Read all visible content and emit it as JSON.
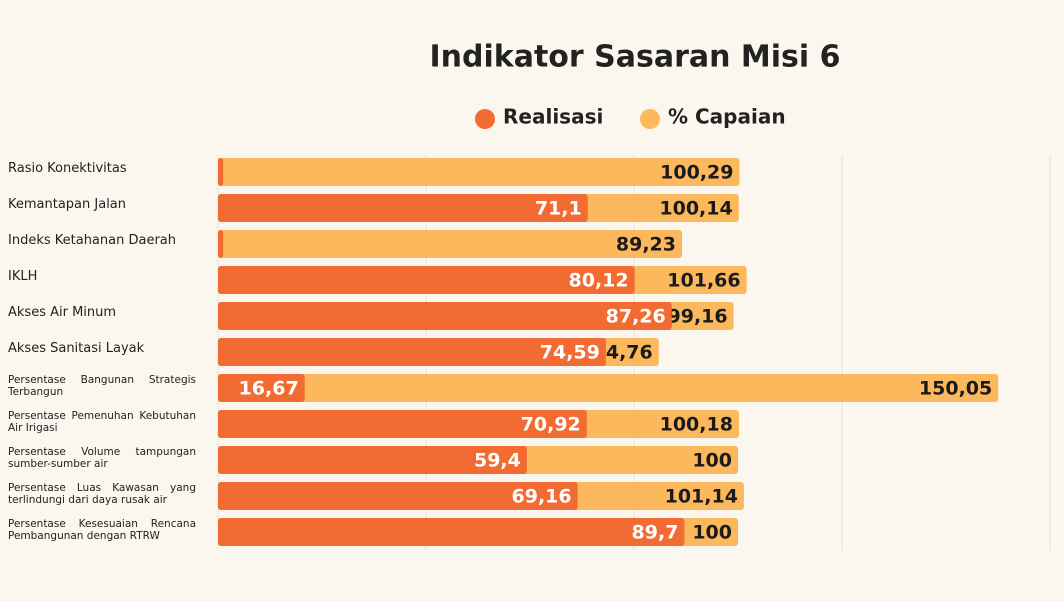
{
  "chart_data": {
    "type": "bar",
    "orientation": "horizontal",
    "title": "Indikator Sasaran Misi 6",
    "categories": [
      "Rasio Konektivitas",
      "Kemantapan Jalan",
      "Indeks Ketahanan Daerah",
      "IKLH",
      "Akses Air Minum",
      "Akses Sanitasi Layak",
      "Persentase Bangunan Strategis Terbangun",
      "Persentase Pemenuhan Kebutuhan Air Irigasi",
      "Persentase Volume tampungan sumber-sumber air",
      "Persentase Luas Kawasan yang terlindungi dari daya rusak air",
      "Persentase Kesesuaian Rencana Pembangunan dengan RTRW"
    ],
    "series": [
      {
        "name": "Realisasi",
        "color": "#f26b32",
        "values": [
          1,
          71.1,
          1,
          80.12,
          87.26,
          74.59,
          16.67,
          70.92,
          59.4,
          69.16,
          89.7
        ],
        "value_labels": [
          null,
          "71,1",
          null,
          "80,12",
          "87,26",
          "74,59",
          "16,67",
          "70,92",
          "59,4",
          "69,16",
          "89,7"
        ]
      },
      {
        "name": "% Capaian",
        "color": "#fbb85c",
        "values": [
          100.29,
          100.14,
          89.23,
          101.66,
          99.16,
          84.76,
          150.05,
          100.18,
          100,
          101.14,
          100
        ],
        "value_labels": [
          "100,29",
          "100,14",
          "89,23",
          "101,66",
          "99,16",
          "84,76",
          "150,05",
          "100,18",
          "100",
          "101,14",
          "100"
        ]
      }
    ],
    "xlim": [
      0,
      160
    ]
  }
}
